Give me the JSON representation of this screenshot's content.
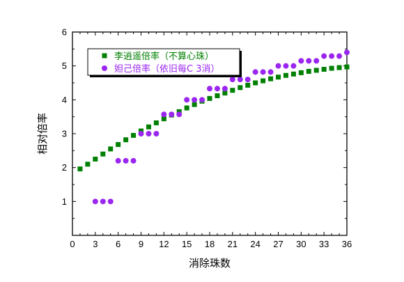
{
  "chart_data": {
    "type": "scatter",
    "xlabel": "消除珠数",
    "ylabel": "相对倍率",
    "xlim": [
      0,
      36
    ],
    "ylim": [
      0,
      6
    ],
    "x_ticks": [
      0,
      3,
      6,
      9,
      12,
      15,
      18,
      21,
      24,
      27,
      30,
      33,
      36
    ],
    "y_ticks": [
      1,
      2,
      3,
      4,
      5,
      6
    ],
    "grid": false,
    "legend_position": "top-left",
    "series": [
      {
        "name": "李逍遥倍率（不算心珠）",
        "marker": "square",
        "color": "#008000",
        "x": [
          1,
          2,
          3,
          4,
          5,
          6,
          7,
          8,
          9,
          10,
          11,
          12,
          13,
          14,
          15,
          16,
          17,
          18,
          19,
          20,
          21,
          22,
          23,
          24,
          25,
          26,
          27,
          28,
          29,
          30,
          31,
          32,
          33,
          34,
          35,
          36
        ],
        "y": [
          1.96,
          2.1,
          2.25,
          2.4,
          2.55,
          2.68,
          2.82,
          2.95,
          3.08,
          3.2,
          3.32,
          3.44,
          3.55,
          3.65,
          3.76,
          3.86,
          3.96,
          4.04,
          4.12,
          4.2,
          4.28,
          4.36,
          4.43,
          4.5,
          4.56,
          4.62,
          4.67,
          4.72,
          4.76,
          4.8,
          4.84,
          4.87,
          4.9,
          4.93,
          4.95,
          4.97
        ]
      },
      {
        "name": "妲己倍率（依旧每C 3消）",
        "marker": "circle",
        "color": "#9a26f0",
        "x": [
          3,
          4,
          5,
          6,
          7,
          8,
          9,
          10,
          11,
          12,
          13,
          14,
          15,
          16,
          17,
          18,
          19,
          20,
          21,
          22,
          23,
          24,
          25,
          26,
          27,
          28,
          29,
          30,
          31,
          32,
          33,
          34,
          35,
          36
        ],
        "y": [
          1,
          1,
          1,
          2.2,
          2.2,
          2.2,
          3,
          3,
          3,
          3.57,
          3.57,
          3.57,
          4,
          4,
          4,
          4.33,
          4.33,
          4.33,
          4.6,
          4.6,
          4.6,
          4.82,
          4.82,
          4.82,
          5,
          5,
          5,
          5.15,
          5.15,
          5.15,
          5.29,
          5.29,
          5.29,
          5.4
        ]
      }
    ]
  }
}
